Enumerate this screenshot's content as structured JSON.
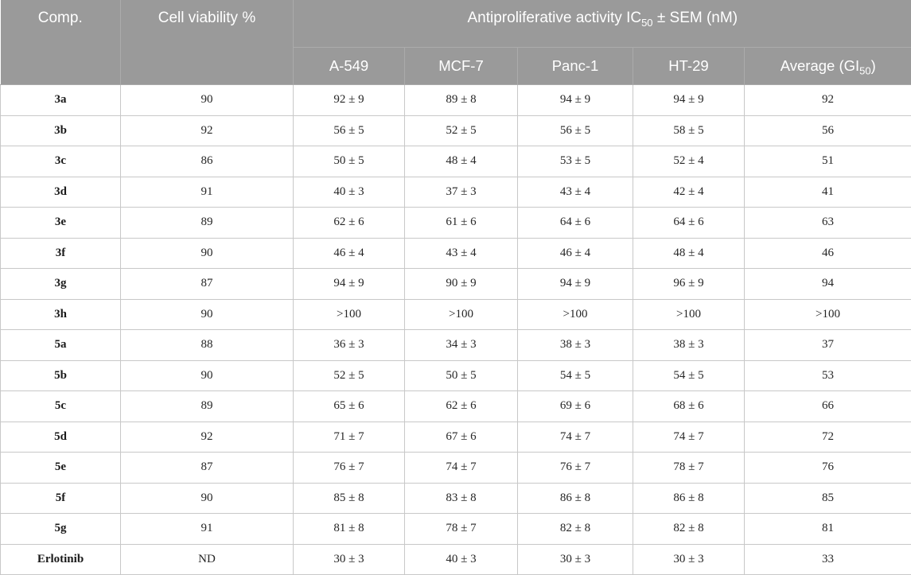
{
  "table": {
    "header": {
      "comp": "Comp.",
      "cell_viability": "Cell viability %",
      "activity": {
        "pre": "Antiproliferative activity IC",
        "sub": "50",
        "post": " ± SEM (nM)"
      },
      "columns": [
        "A-549",
        "MCF-7",
        "Panc-1",
        "HT-29"
      ],
      "average": {
        "pre": "Average (GI",
        "sub": "50",
        "post": ")"
      }
    },
    "rows": [
      {
        "comp": "3a",
        "viability": "90",
        "ic50": [
          "92 ± 9",
          "89 ± 8",
          "94 ± 9",
          "94 ± 9"
        ],
        "average": "92"
      },
      {
        "comp": "3b",
        "viability": "92",
        "ic50": [
          "56 ± 5",
          "52 ± 5",
          "56 ± 5",
          "58 ± 5"
        ],
        "average": "56"
      },
      {
        "comp": "3c",
        "viability": "86",
        "ic50": [
          "50 ± 5",
          "48 ± 4",
          "53 ± 5",
          "52 ± 4"
        ],
        "average": "51"
      },
      {
        "comp": "3d",
        "viability": "91",
        "ic50": [
          "40 ± 3",
          "37 ± 3",
          "43 ± 4",
          "42 ± 4"
        ],
        "average": "41"
      },
      {
        "comp": "3e",
        "viability": "89",
        "ic50": [
          "62 ± 6",
          "61 ± 6",
          "64 ± 6",
          "64 ± 6"
        ],
        "average": "63"
      },
      {
        "comp": "3f",
        "viability": "90",
        "ic50": [
          "46 ± 4",
          "43 ± 4",
          "46 ± 4",
          "48 ± 4"
        ],
        "average": "46"
      },
      {
        "comp": "3g",
        "viability": "87",
        "ic50": [
          "94 ± 9",
          "90 ± 9",
          "94 ± 9",
          "96 ± 9"
        ],
        "average": "94"
      },
      {
        "comp": "3h",
        "viability": "90",
        "ic50": [
          ">100",
          ">100",
          ">100",
          ">100"
        ],
        "average": ">100"
      },
      {
        "comp": "5a",
        "viability": "88",
        "ic50": [
          "36 ± 3",
          "34 ± 3",
          "38 ± 3",
          "38 ± 3"
        ],
        "average": "37"
      },
      {
        "comp": "5b",
        "viability": "90",
        "ic50": [
          "52 ± 5",
          "50 ± 5",
          "54 ± 5",
          "54 ± 5"
        ],
        "average": "53"
      },
      {
        "comp": "5c",
        "viability": "89",
        "ic50": [
          "65 ± 6",
          "62 ± 6",
          "69 ± 6",
          "68 ± 6"
        ],
        "average": "66"
      },
      {
        "comp": "5d",
        "viability": "92",
        "ic50": [
          "71 ± 7",
          "67 ± 6",
          "74 ± 7",
          "74 ± 7"
        ],
        "average": "72"
      },
      {
        "comp": "5e",
        "viability": "87",
        "ic50": [
          "76 ± 7",
          "74 ± 7",
          "76 ± 7",
          "78 ± 7"
        ],
        "average": "76"
      },
      {
        "comp": "5f",
        "viability": "90",
        "ic50": [
          "85 ± 8",
          "83 ± 8",
          "86 ± 8",
          "86 ± 8"
        ],
        "average": "85"
      },
      {
        "comp": "5g",
        "viability": "91",
        "ic50": [
          "81 ± 8",
          "78 ± 7",
          "82 ± 8",
          "82 ± 8"
        ],
        "average": "81"
      },
      {
        "comp": "Erlotinib",
        "viability": "ND",
        "ic50": [
          "30 ± 3",
          "40 ± 3",
          "30 ± 3",
          "30 ± 3"
        ],
        "average": "33"
      }
    ]
  },
  "colors": {
    "header_bg": "#9a9a9a",
    "header_border": "#ababab",
    "header_text": "#ffffff",
    "body_border": "#c8c8c8",
    "body_text": "#262626"
  }
}
